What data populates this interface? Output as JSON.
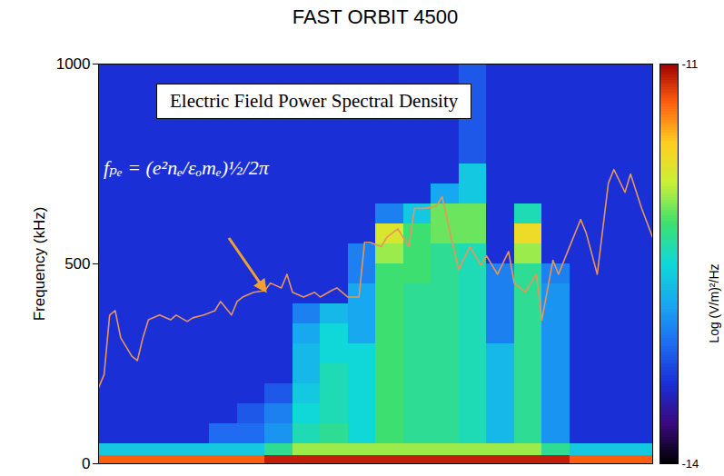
{
  "chart_data": {
    "type": "heatmap",
    "title": "FAST ORBIT 4500",
    "annotations": [
      "Electric Field Power Spectral Density"
    ],
    "y_label": "Frequency (kHz)",
    "xlim": [
      0,
      100
    ],
    "ylim": [
      0,
      1000
    ],
    "yticks": [
      0,
      500,
      1000
    ],
    "tick_labels": "y",
    "x_bins": [
      0,
      5,
      10,
      15,
      20,
      25,
      30,
      35,
      40,
      45,
      50,
      55,
      60,
      65,
      70,
      75,
      80,
      85,
      90,
      95,
      100
    ],
    "y_bins": [
      0,
      20,
      50,
      100,
      150,
      200,
      250,
      300,
      350,
      400,
      450,
      500,
      550,
      600,
      650,
      700,
      750,
      1000
    ],
    "cells": [
      [
        -11.3,
        -11.3,
        -11.3,
        -11.3,
        -11.3,
        -11.3,
        -11.1,
        -11.1,
        -11.1,
        -11.1,
        -11.1,
        -11.1,
        -11.1,
        -11.1,
        -11.1,
        -11.1,
        -11.1,
        -11.3,
        -11.3,
        -11.3
      ],
      [
        -12.6,
        -12.6,
        -12.6,
        -12.6,
        -12.6,
        -12.6,
        -12.3,
        -12.0,
        -12.0,
        -12.0,
        -12.0,
        -12.0,
        -12.0,
        -12.0,
        -12.0,
        -12.0,
        -12.3,
        -12.6,
        -12.6,
        -12.6
      ],
      [
        -13.4,
        -13.4,
        -13.4,
        -13.4,
        -13.1,
        -13.1,
        -12.9,
        -12.4,
        -12.3,
        -12.5,
        -12.2,
        -12.3,
        -12.3,
        -12.4,
        -12.7,
        -12.3,
        -12.9,
        -13.4,
        -13.4,
        -13.4
      ],
      [
        -13.4,
        -13.4,
        -13.4,
        -13.4,
        -13.4,
        -13.2,
        -13.0,
        -12.5,
        -12.4,
        -12.5,
        -12.2,
        -12.3,
        -12.3,
        -12.4,
        -12.7,
        -12.3,
        -12.9,
        -13.4,
        -13.4,
        -13.4
      ],
      [
        -13.4,
        -13.4,
        -13.4,
        -13.4,
        -13.4,
        -13.4,
        -13.2,
        -12.6,
        -12.4,
        -12.5,
        -12.2,
        -12.3,
        -12.3,
        -12.4,
        -12.7,
        -12.3,
        -12.9,
        -13.4,
        -13.4,
        -13.4
      ],
      [
        -13.4,
        -13.4,
        -13.4,
        -13.4,
        -13.4,
        -13.4,
        -13.4,
        -12.7,
        -12.4,
        -12.5,
        -12.2,
        -12.3,
        -12.3,
        -12.4,
        -12.7,
        -12.3,
        -12.9,
        -13.4,
        -13.4,
        -13.4
      ],
      [
        -13.4,
        -13.4,
        -13.4,
        -13.4,
        -13.4,
        -13.4,
        -13.4,
        -12.7,
        -12.5,
        -12.5,
        -12.2,
        -12.3,
        -12.3,
        -12.4,
        -12.7,
        -12.3,
        -12.9,
        -13.4,
        -13.4,
        -13.4
      ],
      [
        -13.4,
        -13.4,
        -13.4,
        -13.4,
        -13.4,
        -13.4,
        -13.4,
        -12.8,
        -12.5,
        -12.8,
        -12.2,
        -12.3,
        -12.3,
        -12.4,
        -13.0,
        -12.3,
        -12.9,
        -13.4,
        -13.4,
        -13.4
      ],
      [
        -13.4,
        -13.4,
        -13.4,
        -13.4,
        -13.4,
        -13.4,
        -13.4,
        -13.0,
        -12.7,
        -12.8,
        -12.2,
        -12.3,
        -12.3,
        -12.4,
        -13.0,
        -12.3,
        -12.9,
        -13.4,
        -13.4,
        -13.4
      ],
      [
        -13.4,
        -13.4,
        -13.4,
        -13.4,
        -13.4,
        -13.4,
        -13.4,
        -13.4,
        -13.4,
        -12.8,
        -12.2,
        -12.3,
        -12.3,
        -12.4,
        -13.0,
        -12.3,
        -12.9,
        -13.4,
        -13.4,
        -13.4
      ],
      [
        -13.4,
        -13.4,
        -13.4,
        -13.4,
        -13.4,
        -13.4,
        -13.4,
        -13.4,
        -13.4,
        -13.0,
        -12.2,
        -12.2,
        -12.3,
        -12.4,
        -13.0,
        -12.3,
        -13.0,
        -13.4,
        -13.4,
        -13.4
      ],
      [
        -13.4,
        -13.4,
        -13.4,
        -13.4,
        -13.4,
        -13.4,
        -13.4,
        -13.4,
        -13.4,
        -13.0,
        -12.0,
        -12.2,
        -12.3,
        -12.4,
        -13.4,
        -12.0,
        -13.4,
        -13.4,
        -13.4,
        -13.4
      ],
      [
        -13.4,
        -13.4,
        -13.4,
        -13.4,
        -13.4,
        -13.4,
        -13.4,
        -13.4,
        -13.4,
        -13.4,
        -11.8,
        -12.2,
        -12.1,
        -12.1,
        -13.4,
        -11.7,
        -13.4,
        -13.4,
        -13.4,
        -13.4
      ],
      [
        -13.4,
        -13.4,
        -13.4,
        -13.4,
        -13.4,
        -13.4,
        -13.4,
        -13.4,
        -13.4,
        -13.4,
        -13.0,
        -12.6,
        -12.1,
        -12.1,
        -13.4,
        -12.4,
        -13.4,
        -13.4,
        -13.4,
        -13.4
      ],
      [
        -13.4,
        -13.4,
        -13.4,
        -13.4,
        -13.4,
        -13.4,
        -13.4,
        -13.4,
        -13.4,
        -13.4,
        -13.4,
        -13.4,
        -12.8,
        -12.6,
        -13.4,
        -13.4,
        -13.4,
        -13.4,
        -13.4,
        -13.4
      ],
      [
        -13.4,
        -13.4,
        -13.4,
        -13.4,
        -13.4,
        -13.4,
        -13.4,
        -13.4,
        -13.4,
        -13.4,
        -13.4,
        -13.4,
        -13.4,
        -12.6,
        -13.4,
        -13.4,
        -13.4,
        -13.4,
        -13.4,
        -13.4
      ],
      [
        -13.4,
        -13.4,
        -13.4,
        -13.4,
        -13.4,
        -13.4,
        -13.4,
        -13.4,
        -13.4,
        -13.4,
        -13.4,
        -13.4,
        -13.4,
        -13.2,
        -13.4,
        -13.4,
        -13.4,
        -13.4,
        -13.4,
        -13.4
      ]
    ],
    "colorbar": {
      "label": "Log (V/m)²/Hz",
      "range": [
        -14,
        -11
      ],
      "ticks": [
        -11,
        -14
      ]
    },
    "series": [
      {
        "name": "fₚₑ = (e²nₑ/εₒmₑ)½/2π",
        "type": "line",
        "color": "#e8955c",
        "x": [
          0,
          1,
          2,
          3,
          4,
          6,
          7,
          8,
          9,
          11,
          13,
          14,
          16,
          17,
          19,
          21,
          22,
          24,
          25,
          26,
          28,
          30,
          31,
          33,
          34,
          35,
          37,
          39,
          40,
          42,
          43,
          45,
          47,
          48,
          49,
          51,
          52,
          54,
          56,
          57,
          59,
          61,
          62,
          64,
          65,
          67,
          69,
          70,
          72,
          74,
          75,
          77,
          79,
          80,
          82,
          83,
          85,
          87,
          88,
          90,
          92,
          93,
          95,
          96,
          98,
          100
        ],
        "values": [
          190,
          223,
          372,
          383,
          315,
          269,
          258,
          315,
          360,
          372,
          360,
          372,
          356,
          365,
          372,
          383,
          406,
          372,
          406,
          417,
          429,
          433,
          452,
          440,
          474,
          429,
          417,
          429,
          417,
          433,
          440,
          417,
          417,
          554,
          554,
          543,
          566,
          588,
          543,
          639,
          639,
          645,
          668,
          543,
          486,
          543,
          497,
          520,
          474,
          531,
          452,
          429,
          474,
          360,
          509,
          474,
          543,
          611,
          577,
          474,
          702,
          736,
          679,
          725,
          639,
          566
        ]
      }
    ]
  }
}
